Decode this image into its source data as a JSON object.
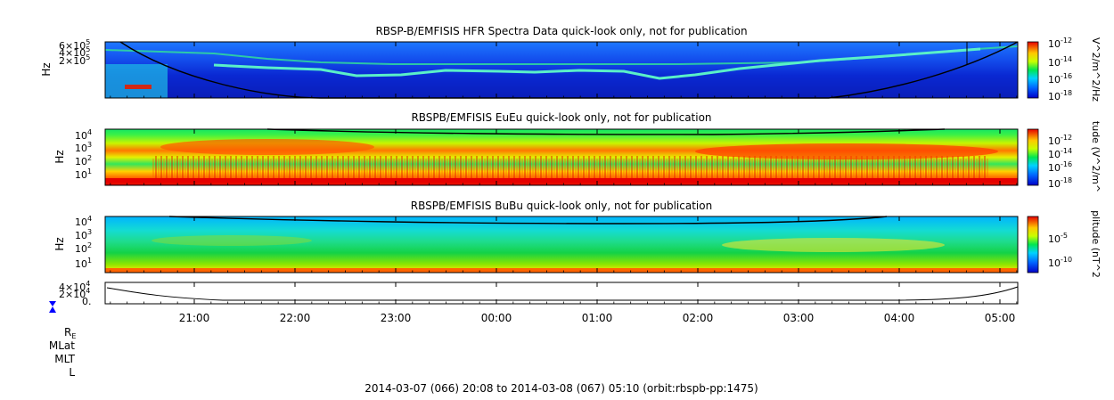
{
  "chart_data": [
    {
      "type": "heatmap",
      "title": "RBSP-B/EMFISIS  HFR Spectra Data quick-look only, not for publication",
      "ylabel": "Hz",
      "y_ticks": [
        {
          "base": "6×10",
          "exp": "5"
        },
        {
          "base": "4×10",
          "exp": "5"
        },
        {
          "base": "2×10",
          "exp": "5"
        }
      ],
      "colorbar": {
        "label": "V^2/m^2/Hz",
        "ticks": [
          {
            "exp": "-12"
          },
          {
            "exp": "-14"
          },
          {
            "exp": "-16"
          },
          {
            "exp": "-18"
          }
        ]
      }
    },
    {
      "type": "heatmap",
      "title": "RBSPB/EMFISIS  EuEu quick-look only, not for publication",
      "ylabel": "Hz",
      "y_ticks": [
        {
          "base": "10",
          "exp": "4"
        },
        {
          "base": "10",
          "exp": "3"
        },
        {
          "base": "10",
          "exp": "2"
        },
        {
          "base": "10",
          "exp": "1"
        }
      ],
      "colorbar": {
        "label": "tude (V^2/m^",
        "ticks": [
          {
            "exp": "-12"
          },
          {
            "exp": "-14"
          },
          {
            "exp": "-16"
          },
          {
            "exp": "-18"
          }
        ]
      }
    },
    {
      "type": "heatmap",
      "title": "RBSPB/EMFISIS  BuBu quick-look only, not for publication",
      "ylabel": "Hz",
      "y_ticks": [
        {
          "base": "10",
          "exp": "4"
        },
        {
          "base": "10",
          "exp": "3"
        },
        {
          "base": "10",
          "exp": "2"
        },
        {
          "base": "10",
          "exp": "1"
        }
      ],
      "colorbar": {
        "label": "plitude (nT^2",
        "ticks": [
          {
            "exp": "-5"
          },
          {
            "exp": "-10"
          }
        ]
      }
    },
    {
      "type": "line",
      "title": "",
      "y_ticks": [
        {
          "base": "4×10",
          "exp": "4"
        },
        {
          "base": "2×10",
          "exp": "4"
        },
        {
          "base": "0.",
          "exp": ""
        }
      ]
    }
  ],
  "x_ticks": [
    "21:00",
    "22:00",
    "23:00",
    "00:00",
    "01:00",
    "02:00",
    "03:00",
    "04:00",
    "05:00"
  ],
  "ephemeris_labels": {
    "r_main": "R",
    "r_sub": "E",
    "mlat": "MLat",
    "mlt": "MLT",
    "l": "L"
  },
  "footer": "2014-03-07 (066) 20:08 to 2014-03-08 (067) 05:10 (orbit:rbspb-pp:1475)",
  "colors": {
    "marker": "#0000ff",
    "trace": "#000000"
  }
}
